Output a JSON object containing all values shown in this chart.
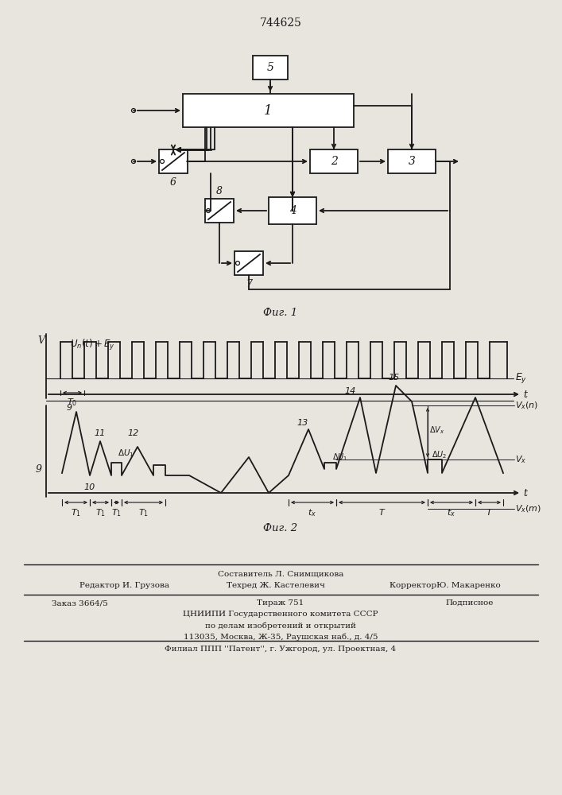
{
  "patent_number": "744625",
  "fig1_caption": "Фиг. 1",
  "fig2_caption": "Фиг. 2",
  "footer_sestavitel": "Составитель Л. Снимщикова",
  "footer_redaktor": "Редактор И. Грузова",
  "footer_tehred": "Техред Ж. Кастелевич",
  "footer_korrektor": "КорректорЮ. Макаренко",
  "footer_zakaz": "Заказ 3664/5",
  "footer_tirazh": "Тираж 751",
  "footer_podpisnoe": "Подписное",
  "footer_line4": "ЦНИИПИ Государственного комитета СССР",
  "footer_line5": "по делам изобретений и открытий",
  "footer_line6": "113035, Москва, Ж-35, Раушская наб., д. 4/5",
  "footer_line7": "Филиал ППП ''Патент'', г. Ужгород, ул. Проектная, 4",
  "bg_color": "#e8e4de",
  "line_color": "#1a1a1a"
}
